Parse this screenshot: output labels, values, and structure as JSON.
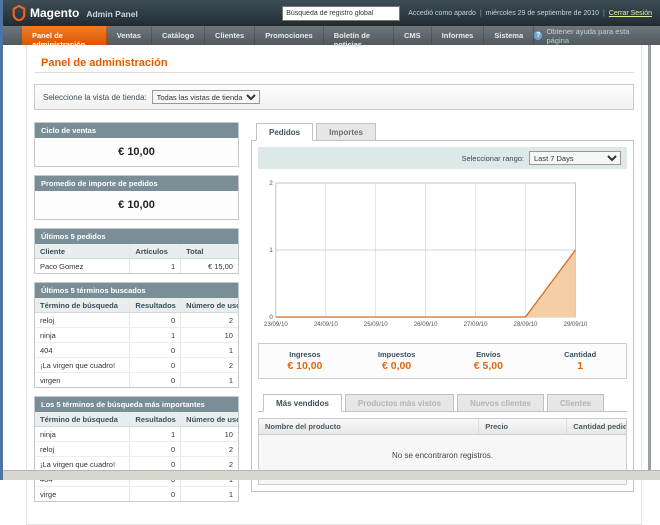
{
  "header": {
    "logo_text": "Magento",
    "logo_sub": "Admin Panel",
    "search_value": "Búsqueda de registro global",
    "logged_in": "Accedió como apardo",
    "separator": "|",
    "date": "miércoles 29 de septiembre de 2010",
    "logout": "Cerrar Sesión"
  },
  "nav": {
    "items": [
      {
        "label": "Panel de administración",
        "active": true
      },
      {
        "label": "Ventas",
        "active": false
      },
      {
        "label": "Catálogo",
        "active": false
      },
      {
        "label": "Clientes",
        "active": false
      },
      {
        "label": "Promociones",
        "active": false
      },
      {
        "label": "Boletín de noticias",
        "active": false
      },
      {
        "label": "CMS",
        "active": false
      },
      {
        "label": "Informes",
        "active": false
      },
      {
        "label": "Sistema",
        "active": false
      }
    ],
    "help": "Obtener ayuda para esta página",
    "help_icon": "question-mark",
    "active_color": "#e96612"
  },
  "page": {
    "title": "Panel de administración",
    "title_color": "#e15a00"
  },
  "store_switcher": {
    "label": "Seleccione la vista de tienda:",
    "value": "Todas las vistas de tienda"
  },
  "left": {
    "lifetime": {
      "title": "Ciclo de ventas",
      "value": "€ 10,00"
    },
    "average": {
      "title": "Promedio de importe de pedidos",
      "value": "€ 10,00"
    },
    "last_orders": {
      "title": "Últimos 5 pedidos",
      "columns": [
        "Cliente",
        "Artículos",
        "Total"
      ],
      "rows": [
        [
          "Paco Gomez",
          "1",
          "€ 15,00"
        ]
      ]
    },
    "last_search": {
      "title": "Últimos 5 términos buscados",
      "columns": [
        "Término de búsqueda",
        "Resultados",
        "Número de usos"
      ],
      "rows": [
        [
          "reloj",
          "0",
          "2"
        ],
        [
          "ninja",
          "1",
          "10"
        ],
        [
          "404",
          "0",
          "1"
        ],
        [
          "¡La virgen que cuadro!",
          "0",
          "2"
        ],
        [
          "virgen",
          "0",
          "1"
        ]
      ]
    },
    "top_search": {
      "title": "Los 5 términos de búsqueda más importantes",
      "columns": [
        "Término de búsqueda",
        "Resultados",
        "Número de usos"
      ],
      "rows": [
        [
          "ninja",
          "1",
          "10"
        ],
        [
          "reloj",
          "0",
          "2"
        ],
        [
          "¡La virgen que cuadro!",
          "0",
          "2"
        ],
        [
          "404",
          "0",
          "1"
        ],
        [
          "virge",
          "0",
          "1"
        ]
      ]
    }
  },
  "right": {
    "tabs": [
      {
        "label": "Pedidos",
        "active": true,
        "disabled": false
      },
      {
        "label": "Importes",
        "active": false,
        "disabled": false
      }
    ],
    "range_label": "Seleccionar rango:",
    "range_value": "Last 7 Days",
    "stats": [
      {
        "label": "Ingresos",
        "value": "€ 10,00"
      },
      {
        "label": "Impuestos",
        "value": "€ 0,00"
      },
      {
        "label": "Envíos",
        "value": "€ 5,00"
      },
      {
        "label": "Cantidad",
        "value": "1"
      }
    ],
    "bottom_tabs": [
      {
        "label": "Más vendidos",
        "active": true,
        "disabled": false
      },
      {
        "label": "Productos más vistos",
        "active": false,
        "disabled": true
      },
      {
        "label": "Nuevos clientes",
        "active": false,
        "disabled": true
      },
      {
        "label": "Clientes",
        "active": false,
        "disabled": true
      }
    ],
    "grid": {
      "columns": [
        "Nombre del producto",
        "Precio",
        "Cantidad pedida"
      ],
      "empty": "No se encontraron registros."
    }
  },
  "chart_data": {
    "type": "area",
    "title": "",
    "x": [
      "23/09/10",
      "24/09/10",
      "25/09/10",
      "26/09/10",
      "27/09/10",
      "28/09/10",
      "29/09/10"
    ],
    "values": [
      0,
      0,
      0,
      0,
      0,
      0,
      1
    ],
    "xlabel": "",
    "ylabel": "",
    "ylim": [
      0,
      2
    ],
    "yticks": [
      0,
      1,
      2
    ],
    "grid": true,
    "legend": "none",
    "line_color": "#cf6a2d",
    "fill_color": "#f4cfa3"
  }
}
